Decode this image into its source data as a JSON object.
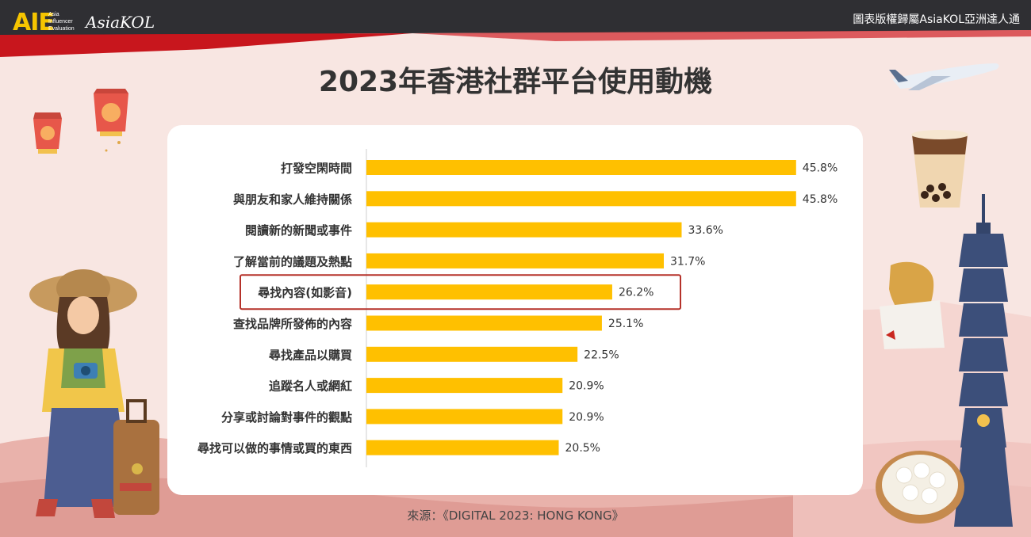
{
  "header": {
    "logo_text": "AIE",
    "logo_sub": [
      "Asia",
      "Influencer",
      "Evaluation"
    ],
    "brand": "AsiaKOL",
    "copyright": "圖表版權歸屬AsiaKOL亞洲達人通"
  },
  "title": "2023年香港社群平台使用動機",
  "source": "來源：《DIGITAL 2023: HONG KONG》",
  "colors": {
    "bar": "#ffc000",
    "highlight_border": "#b5322a",
    "header_dark": "#2f2f33",
    "header_red": "#c8161d"
  },
  "chart_data": {
    "type": "bar",
    "orientation": "horizontal",
    "categories": [
      "打發空閑時間",
      "與朋友和家人維持關係",
      "閱讀新的新聞或事件",
      "了解當前的議題及熱點",
      "尋找內容(如影音)",
      "查找品牌所發佈的內容",
      "尋找產品以購買",
      "追蹤名人或網紅",
      "分享或討論對事件的觀點",
      "尋找可以做的事情或買的東西"
    ],
    "values": [
      45.8,
      45.8,
      33.6,
      31.7,
      26.2,
      25.1,
      22.5,
      20.9,
      20.9,
      20.5
    ],
    "value_labels": [
      "45.8%",
      "45.8%",
      "33.6%",
      "31.7%",
      "26.2%",
      "25.1%",
      "22.5%",
      "20.9%",
      "20.9%",
      "20.5%"
    ],
    "highlighted_category": "尋找內容(如影音)",
    "xlim": [
      0,
      47
    ],
    "grid": false
  }
}
